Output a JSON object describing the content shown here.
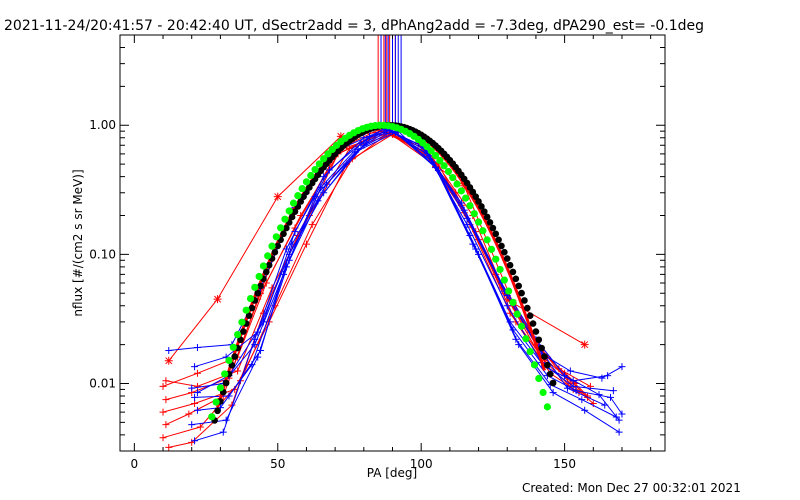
{
  "chart_data": {
    "type": "line",
    "title": "2021-11-24/20:41:57 - 20:42:40 UT, dSectr2add = 3, dPhAng2add = -7.3deg, dPA290_est= -0.1deg",
    "xlabel": "PA [deg]",
    "ylabel": "nflux [#/(cm2 s sr MeV)]",
    "xlim": [
      -5,
      185
    ],
    "ylim": [
      0.003,
      5.0
    ],
    "yscale": "log",
    "x_ticks": [
      0,
      50,
      100,
      150
    ],
    "y_ticks": [
      {
        "value": 1.0,
        "label": "1.00"
      },
      {
        "value": 0.1,
        "label": "0.10"
      },
      {
        "value": 0.01,
        "label": "0.01"
      }
    ],
    "footer": "Created: Mon Dec 27 00:32:01 2021",
    "colors": {
      "red": "#ff0000",
      "blue": "#0000ff",
      "green": "#00ff00",
      "black": "#000000"
    },
    "vertical_markers": {
      "red_x": [
        85,
        87,
        88,
        89,
        90,
        91
      ],
      "blue_x": [
        86,
        87.5,
        88.5,
        90,
        91,
        92,
        93
      ],
      "y_from": 0.93
    },
    "fit_black": {
      "center": 89,
      "sigma": 18.8,
      "x_start": 28,
      "x_end": 146
    },
    "fit_green": {
      "center": 86,
      "sigma": 18.3,
      "x_start": 27,
      "x_end": 144
    },
    "fit_red": {
      "center": 88,
      "sigma": 18.6,
      "x_start": 29,
      "x_end": 143
    },
    "series": [
      {
        "name": "red-star-1",
        "color": "red",
        "marker": "star",
        "x": [
          12,
          29,
          50,
          72,
          88,
          115,
          132,
          157
        ],
        "y": [
          0.015,
          0.045,
          0.28,
          0.82,
          0.9,
          0.34,
          0.042,
          0.02
        ]
      },
      {
        "name": "red-1",
        "color": "red",
        "marker": "plus",
        "x": [
          10,
          22,
          36,
          46,
          58,
          72,
          88,
          103,
          118,
          130,
          142,
          152,
          160
        ],
        "y": [
          0.0095,
          0.012,
          0.016,
          0.06,
          0.2,
          0.65,
          0.86,
          0.6,
          0.2,
          0.045,
          0.018,
          0.01,
          0.007
        ]
      },
      {
        "name": "red-2",
        "color": "red",
        "marker": "plus",
        "x": [
          11,
          20,
          33,
          44,
          56,
          70,
          86,
          100,
          114,
          128,
          140,
          150,
          158
        ],
        "y": [
          0.0075,
          0.0085,
          0.011,
          0.05,
          0.16,
          0.58,
          0.9,
          0.68,
          0.24,
          0.055,
          0.02,
          0.012,
          0.008
        ]
      },
      {
        "name": "red-3",
        "color": "red",
        "marker": "plus",
        "x": [
          10,
          21,
          35,
          47,
          60,
          74,
          89,
          104,
          117,
          131,
          143,
          153
        ],
        "y": [
          0.006,
          0.007,
          0.009,
          0.03,
          0.12,
          0.5,
          0.88,
          0.55,
          0.17,
          0.035,
          0.015,
          0.009
        ]
      },
      {
        "name": "red-4",
        "color": "red",
        "marker": "plus",
        "x": [
          11,
          19,
          31,
          43,
          55,
          69,
          85,
          99,
          112,
          126,
          138,
          148,
          159
        ],
        "y": [
          0.0048,
          0.0058,
          0.008,
          0.045,
          0.22,
          0.62,
          0.92,
          0.72,
          0.3,
          0.07,
          0.025,
          0.013,
          0.0095
        ]
      },
      {
        "name": "red-5",
        "color": "red",
        "marker": "plus",
        "x": [
          10,
          23,
          37,
          49,
          62,
          76,
          90,
          106,
          120,
          133,
          145,
          155
        ],
        "y": [
          0.0038,
          0.0046,
          0.0105,
          0.04,
          0.17,
          0.55,
          0.85,
          0.5,
          0.13,
          0.03,
          0.012,
          0.0085
        ]
      },
      {
        "name": "red-6",
        "color": "red",
        "marker": "plus",
        "x": [
          12,
          20,
          34,
          45,
          57,
          71,
          87,
          101,
          115,
          129,
          141,
          151,
          158
        ],
        "y": [
          0.0032,
          0.0035,
          0.0068,
          0.035,
          0.14,
          0.6,
          0.89,
          0.62,
          0.21,
          0.05,
          0.017,
          0.011,
          0.0078
        ]
      },
      {
        "name": "red-7",
        "color": "red",
        "marker": "plus",
        "x": [
          11,
          22,
          36,
          48,
          61,
          75,
          91,
          105,
          119,
          132,
          144,
          154
        ],
        "y": [
          0.0105,
          0.0095,
          0.0125,
          0.055,
          0.2,
          0.66,
          0.87,
          0.48,
          0.15,
          0.04,
          0.016,
          0.01
        ]
      },
      {
        "name": "blue-1",
        "color": "blue",
        "marker": "plus",
        "x": [
          12,
          22,
          34,
          44,
          56,
          68,
          88,
          102,
          116,
          130,
          142,
          152,
          163,
          170
        ],
        "y": [
          0.018,
          0.019,
          0.02,
          0.055,
          0.23,
          0.6,
          0.95,
          0.63,
          0.19,
          0.048,
          0.017,
          0.0125,
          0.011,
          0.0135
        ]
      },
      {
        "name": "blue-2",
        "color": "blue",
        "marker": "plus",
        "x": [
          21,
          32,
          43,
          54,
          66,
          80,
          89,
          103,
          117,
          131,
          143,
          153,
          165
        ],
        "y": [
          0.0135,
          0.016,
          0.025,
          0.1,
          0.3,
          0.7,
          0.92,
          0.58,
          0.14,
          0.03,
          0.0135,
          0.0105,
          0.0115
        ]
      },
      {
        "name": "blue-3",
        "color": "blue",
        "marker": "plus",
        "x": [
          20,
          31,
          42,
          53,
          64,
          78,
          90,
          104,
          118,
          132,
          144,
          154,
          166,
          170
        ],
        "y": [
          0.0092,
          0.01,
          0.02,
          0.08,
          0.26,
          0.65,
          0.9,
          0.52,
          0.12,
          0.026,
          0.0115,
          0.0088,
          0.0078,
          0.0058
        ]
      },
      {
        "name": "blue-4",
        "color": "blue",
        "marker": "plus",
        "x": [
          21,
          33,
          44,
          55,
          67,
          81,
          88,
          101,
          115,
          129,
          141,
          151,
          164
        ],
        "y": [
          0.0078,
          0.008,
          0.018,
          0.12,
          0.35,
          0.74,
          0.93,
          0.68,
          0.22,
          0.052,
          0.019,
          0.0092,
          0.0068
        ]
      },
      {
        "name": "blue-5",
        "color": "blue",
        "marker": "plus",
        "x": [
          22,
          30,
          41,
          52,
          63,
          77,
          91,
          105,
          119,
          133,
          145,
          156,
          168
        ],
        "y": [
          0.0062,
          0.0065,
          0.014,
          0.07,
          0.28,
          0.62,
          0.88,
          0.47,
          0.11,
          0.022,
          0.0098,
          0.0075,
          0.0055
        ]
      },
      {
        "name": "blue-6",
        "color": "blue",
        "marker": "plus",
        "x": [
          20,
          32,
          43,
          54,
          65,
          79,
          87,
          100,
          114,
          128,
          140,
          150,
          162,
          169
        ],
        "y": [
          0.0048,
          0.0052,
          0.016,
          0.09,
          0.33,
          0.72,
          0.94,
          0.7,
          0.25,
          0.06,
          0.022,
          0.0115,
          0.0082,
          0.0052
        ]
      },
      {
        "name": "blue-7",
        "color": "blue",
        "marker": "plus",
        "x": [
          21,
          31,
          42,
          53,
          66,
          80,
          92,
          106,
          120,
          134,
          146,
          157,
          169
        ],
        "y": [
          0.0036,
          0.0042,
          0.022,
          0.11,
          0.4,
          0.8,
          0.9,
          0.45,
          0.1,
          0.02,
          0.0085,
          0.0062,
          0.0042
        ]
      },
      {
        "name": "blue-8",
        "color": "blue",
        "marker": "plus",
        "x": [
          22,
          33,
          45,
          56,
          68,
          82,
          89,
          102,
          116,
          130,
          142,
          153,
          167
        ],
        "y": [
          0.0085,
          0.0115,
          0.03,
          0.15,
          0.45,
          0.82,
          0.91,
          0.6,
          0.17,
          0.04,
          0.0145,
          0.0095,
          0.0088
        ]
      }
    ]
  }
}
